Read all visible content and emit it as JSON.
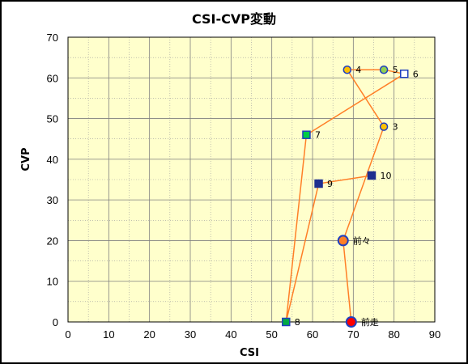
{
  "chart_data": {
    "type": "scatter",
    "title": "CSI-CVP変動",
    "xlabel": "CSI",
    "ylabel": "CVP",
    "xlim": [
      0,
      90
    ],
    "ylim": [
      0,
      70
    ],
    "xticks": [
      0,
      10,
      20,
      30,
      40,
      50,
      60,
      70,
      80,
      90
    ],
    "yticks": [
      0,
      10,
      20,
      30,
      40,
      50,
      60,
      70
    ],
    "grid": true,
    "plot_background": "#ffffcc",
    "line_color": "#ff7f27",
    "path_order": [
      "前走",
      "前々",
      "3",
      "4",
      "5",
      "6",
      "7",
      "8",
      "9",
      "10"
    ],
    "points": [
      {
        "label": "前走",
        "x": 69.5,
        "y": 0,
        "marker": "circle",
        "size": "large",
        "fill": "#ff0000",
        "stroke": "#1f3fbf"
      },
      {
        "label": "前々",
        "x": 67.5,
        "y": 20,
        "marker": "circle",
        "size": "large",
        "fill": "#ff7f27",
        "stroke": "#1f3fbf"
      },
      {
        "label": "3",
        "x": 77.5,
        "y": 48,
        "marker": "circle",
        "size": "medium",
        "fill": "#ffc000",
        "stroke": "#1f3fbf"
      },
      {
        "label": "4",
        "x": 68.5,
        "y": 62,
        "marker": "circle",
        "size": "medium",
        "fill": "#ffc000",
        "stroke": "#1f3fbf"
      },
      {
        "label": "5",
        "x": 77.5,
        "y": 62,
        "marker": "circle",
        "size": "medium",
        "fill": "#92d050",
        "stroke": "#1f3fbf"
      },
      {
        "label": "6",
        "x": 82.5,
        "y": 61,
        "marker": "square",
        "size": "medium",
        "fill": "#ffffff",
        "stroke": "#1f3fbf"
      },
      {
        "label": "7",
        "x": 58.5,
        "y": 46,
        "marker": "square",
        "size": "medium",
        "fill": "#00cc44",
        "stroke": "#1f3fbf"
      },
      {
        "label": "8",
        "x": 53.5,
        "y": 0,
        "marker": "square",
        "size": "medium",
        "fill": "#00aa44",
        "stroke": "#1f3fbf"
      },
      {
        "label": "9",
        "x": 61.5,
        "y": 34,
        "marker": "square",
        "size": "medium",
        "fill": "#1f2f8f",
        "stroke": "#1f2f8f"
      },
      {
        "label": "10",
        "x": 74.5,
        "y": 36,
        "marker": "square",
        "size": "medium",
        "fill": "#1f2f8f",
        "stroke": "#1f2f8f"
      }
    ]
  }
}
